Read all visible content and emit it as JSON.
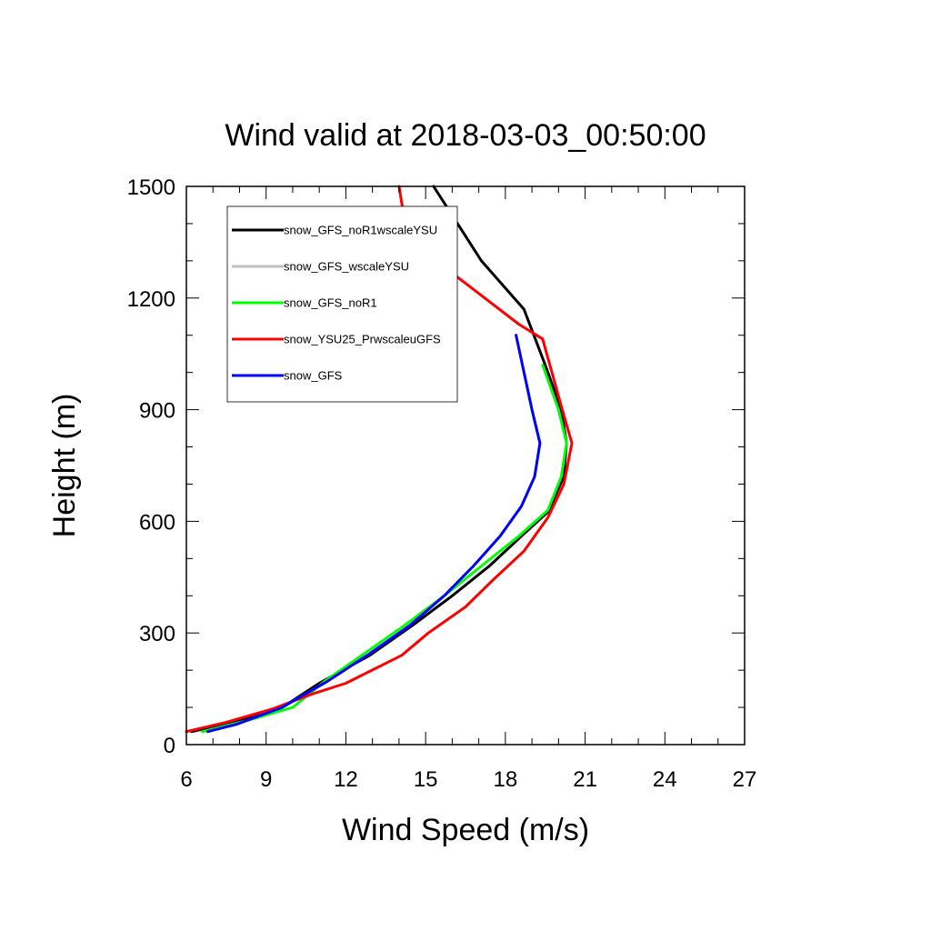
{
  "chart_data": {
    "type": "line",
    "title": "Wind valid at 2018-03-03_00:50:00",
    "xlabel": "Wind Speed (m/s)",
    "ylabel": "Height (m)",
    "xlim": [
      6,
      27
    ],
    "ylim": [
      0,
      1500
    ],
    "xticks": [
      6,
      9,
      12,
      15,
      18,
      21,
      24,
      27
    ],
    "yticks": [
      0,
      300,
      600,
      900,
      1200,
      1500
    ],
    "xtick_labels": [
      "6",
      "9",
      "12",
      "15",
      "18",
      "21",
      "24",
      "27"
    ],
    "ytick_labels": [
      "0",
      "300",
      "600",
      "900",
      "1200",
      "1500"
    ],
    "grid": false,
    "legend_position": "top-left",
    "series": [
      {
        "name": "snow_GFS_noR1wscaleYSU",
        "color": "#000000",
        "x": [
          6.2,
          7.8,
          9.5,
          11.0,
          12.9,
          14.5,
          16.0,
          17.4,
          18.6,
          19.6,
          20.2,
          20.3,
          20.1,
          19.5,
          18.7,
          17.1,
          16.2,
          15.3
        ],
        "y": [
          35,
          60,
          95,
          165,
          240,
          320,
          400,
          480,
          560,
          625,
          720,
          810,
          900,
          1020,
          1170,
          1300,
          1400,
          1500
        ]
      },
      {
        "name": "snow_GFS_wscaleYSU",
        "color": "#c0c0c0",
        "x": [
          6.8,
          7.9,
          9.6,
          11.3,
          12.8,
          14.4,
          15.7,
          16.8,
          17.8,
          18.6,
          19.1,
          19.3,
          19.0,
          18.4
        ],
        "y": [
          35,
          55,
          100,
          170,
          240,
          320,
          400,
          480,
          560,
          640,
          720,
          810,
          900,
          1100
        ]
      },
      {
        "name": "snow_GFS_noR1",
        "color": "#00ff00",
        "x": [
          6.6,
          8.3,
          10.0,
          11.2,
          12.7,
          14.2,
          15.7,
          17.1,
          18.5,
          19.6,
          20.1,
          20.3,
          20.0,
          19.4
        ],
        "y": [
          35,
          65,
          100,
          170,
          245,
          320,
          400,
          480,
          560,
          630,
          720,
          810,
          900,
          1020
        ]
      },
      {
        "name": "snow_YSU25_PrwscaleuGFS",
        "color": "#ff0000",
        "x": [
          6.0,
          7.5,
          9.2,
          10.7,
          12.0,
          14.1,
          15.1,
          16.5,
          17.5,
          18.7,
          19.6,
          20.2,
          20.5,
          20.1,
          19.4,
          18.5,
          15.4,
          14.2,
          14.0
        ],
        "y": [
          35,
          60,
          95,
          135,
          165,
          240,
          300,
          370,
          440,
          520,
          610,
          700,
          810,
          910,
          1090,
          1130,
          1300,
          1410,
          1500
        ]
      },
      {
        "name": "snow_GFS",
        "color": "#0000ff",
        "x": [
          6.8,
          7.9,
          9.6,
          11.3,
          12.8,
          14.4,
          15.7,
          16.8,
          17.8,
          18.6,
          19.1,
          19.3,
          19.0,
          18.4
        ],
        "y": [
          35,
          55,
          100,
          170,
          240,
          320,
          400,
          480,
          560,
          640,
          720,
          810,
          900,
          1100
        ]
      }
    ]
  }
}
